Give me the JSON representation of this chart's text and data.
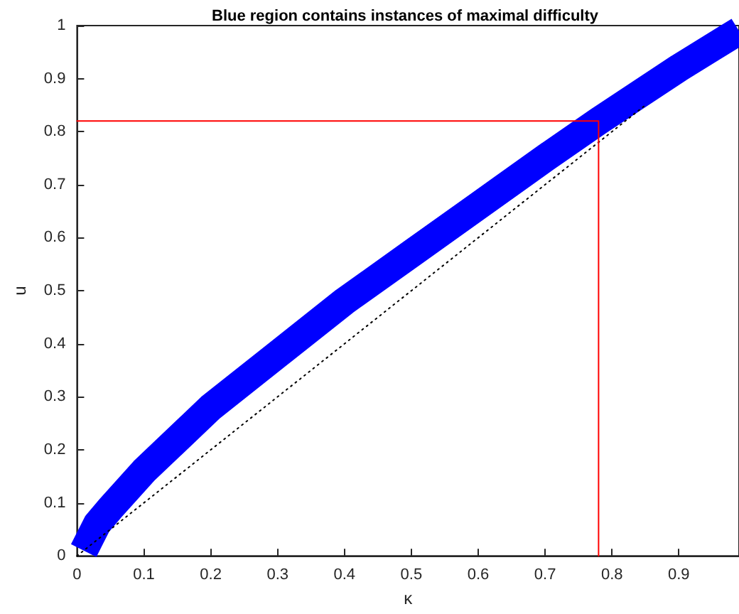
{
  "chart_data": {
    "type": "line",
    "title": "Blue region contains instances of maximal difficulty",
    "xlabel": "κ",
    "ylabel": "u",
    "xlim": [
      0,
      0.99
    ],
    "xticks": [
      0,
      0.1,
      0.2,
      0.3,
      0.4,
      0.5,
      0.6,
      0.7,
      0.8,
      0.9
    ],
    "ylim": [
      0,
      1
    ],
    "yticks": [
      0,
      0.1,
      0.2,
      0.3,
      0.4,
      0.5,
      0.6,
      0.7,
      0.8,
      0.9,
      1
    ],
    "grid": false,
    "marker": "none",
    "series": [
      {
        "color": "#0000ff",
        "line_style": "solid",
        "x": [
          0.01,
          0.03,
          0.05,
          0.1,
          0.2,
          0.3,
          0.4,
          0.5,
          0.6,
          0.7,
          0.78,
          0.9,
          0.99
        ],
        "values": [
          0.01,
          0.06,
          0.09,
          0.16,
          0.28,
          0.38,
          0.48,
          0.57,
          0.66,
          0.75,
          0.82,
          0.92,
          0.99
        ]
      },
      {
        "color": "#000000",
        "line_style": "dotted",
        "x": [
          0,
          0.85
        ],
        "values": [
          0,
          0.85
        ]
      },
      {
        "color": "#ff0000",
        "line_style": "solid",
        "x": [
          0,
          0.78,
          0.78
        ],
        "values": [
          0.82,
          0.82,
          0
        ]
      }
    ]
  }
}
